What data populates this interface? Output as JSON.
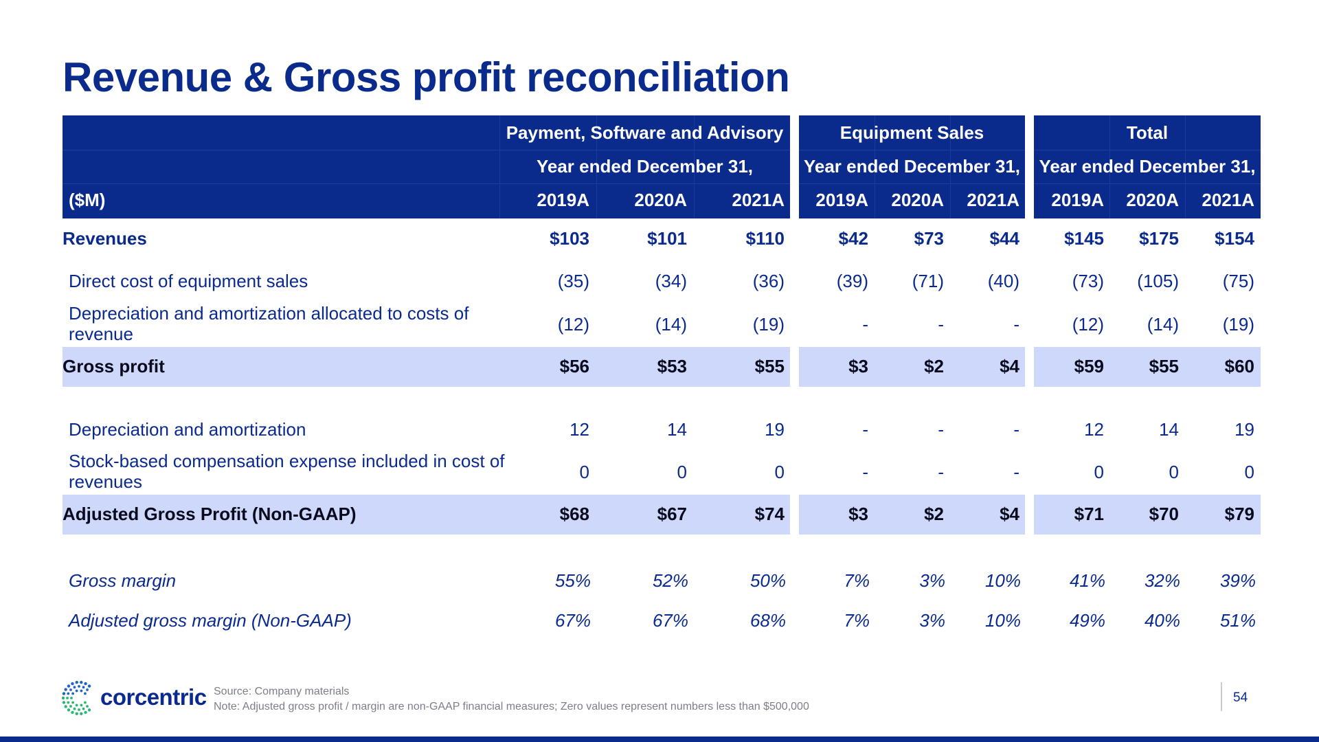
{
  "title": "Revenue & Gross profit reconciliation",
  "header": {
    "units_label": "($M)",
    "groups": [
      {
        "name": "Payment, Software and Advisory",
        "sub": "Year ended December 31,",
        "years": [
          "2019A",
          "2020A",
          "2021A"
        ]
      },
      {
        "name": "Equipment Sales",
        "sub": "Year ended December 31,",
        "years": [
          "2019A",
          "2020A",
          "2021A"
        ]
      },
      {
        "name": "Total",
        "sub": "Year ended December 31,",
        "years": [
          "2019A",
          "2020A",
          "2021A"
        ]
      }
    ]
  },
  "rows": [
    {
      "label": "Revenues",
      "style": "bold",
      "values": [
        "$103",
        "$101",
        "$110",
        "$42",
        "$73",
        "$44",
        "$145",
        "$175",
        "$154"
      ]
    },
    {
      "label": "Direct cost of equipment sales",
      "style": "normal",
      "values": [
        "(35)",
        "(34)",
        "(36)",
        "(39)",
        "(71)",
        "(40)",
        "(73)",
        "(105)",
        "(75)"
      ]
    },
    {
      "label": "Depreciation and amortization allocated to costs of revenue",
      "style": "normal",
      "values": [
        "(12)",
        "(14)",
        "(19)",
        "-",
        "-",
        "-",
        "(12)",
        "(14)",
        "(19)"
      ]
    },
    {
      "label": "Gross profit",
      "style": "highlight",
      "values": [
        "$56",
        "$53",
        "$55",
        "$3",
        "$2",
        "$4",
        "$59",
        "$55",
        "$60"
      ]
    },
    {
      "label": "Depreciation and amortization",
      "style": "normal",
      "values": [
        "12",
        "14",
        "19",
        "-",
        "-",
        "-",
        "12",
        "14",
        "19"
      ]
    },
    {
      "label": "Stock-based compensation expense included in cost of revenues",
      "style": "normal",
      "values": [
        "0",
        "0",
        "0",
        "-",
        "-",
        "-",
        "0",
        "0",
        "0"
      ]
    },
    {
      "label": "Adjusted Gross Profit (Non-GAAP)",
      "style": "highlight",
      "values": [
        "$68",
        "$67",
        "$74",
        "$3",
        "$2",
        "$4",
        "$71",
        "$70",
        "$79"
      ]
    },
    {
      "label": "Gross margin",
      "style": "italic",
      "values": [
        "55%",
        "52%",
        "50%",
        "7%",
        "3%",
        "10%",
        "41%",
        "32%",
        "39%"
      ]
    },
    {
      "label": "Adjusted gross margin (Non-GAAP)",
      "style": "italic",
      "values": [
        "67%",
        "67%",
        "68%",
        "7%",
        "3%",
        "10%",
        "49%",
        "40%",
        "51%"
      ]
    }
  ],
  "footer": {
    "logo_text": "corcentric",
    "source": "Source: Company materials",
    "note": "Note: Adjusted gross profit / margin are non-GAAP financial measures; Zero values represent numbers less than $500,000",
    "page_number": "54"
  },
  "colors": {
    "brand_navy": "#0a2a8c",
    "highlight_row": "#cdd8fb",
    "logo_green": "#2bb673",
    "logo_blue": "#1e63c8"
  }
}
